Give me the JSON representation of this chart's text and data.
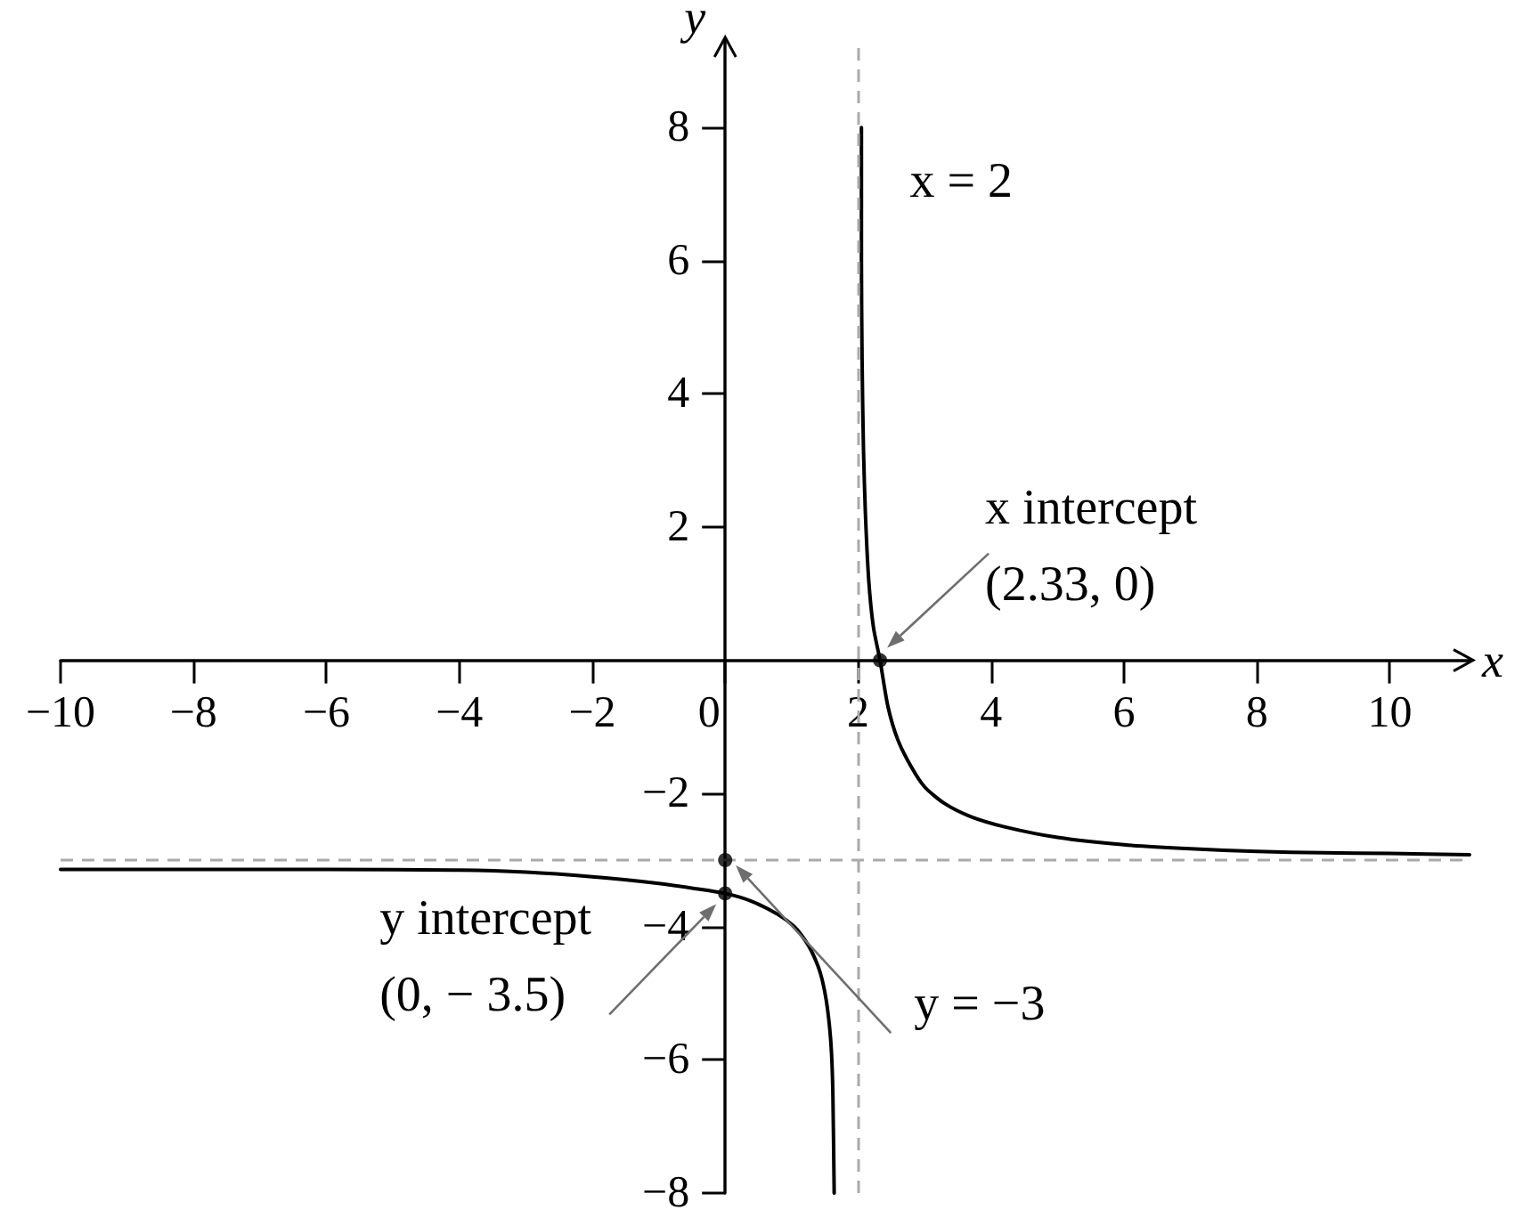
{
  "chart_data": {
    "type": "line",
    "xlabel": "x",
    "ylabel": "y",
    "xlim": [
      -10,
      11.2
    ],
    "ylim": [
      -8,
      9.3
    ],
    "xticks": [
      {
        "value": -10,
        "label": "−10"
      },
      {
        "value": -8,
        "label": "−8"
      },
      {
        "value": -6,
        "label": "−6"
      },
      {
        "value": -4,
        "label": "−4"
      },
      {
        "value": -2,
        "label": "−2"
      },
      0,
      2,
      4,
      6,
      8,
      10
    ],
    "yticks": [
      {
        "value": -8,
        "label": "−8"
      },
      {
        "value": -6,
        "label": "−6"
      },
      {
        "value": -4,
        "label": "−4"
      },
      {
        "value": -2,
        "label": "−2"
      },
      2,
      4,
      6,
      8
    ],
    "series": [
      {
        "color": "#000000",
        "marker": "none",
        "line_style": "solid",
        "x": [
          -10,
          -8,
          -6,
          -4,
          -3,
          -2,
          -1,
          -0.5,
          0,
          0.4,
          0.8,
          1.04,
          1.2,
          1.3,
          1.4,
          1.46,
          1.52,
          1.57,
          1.6,
          1.62,
          1.64
        ],
        "values": [
          -3.14,
          -3.14,
          -3.14,
          -3.15,
          -3.18,
          -3.25,
          -3.35,
          -3.42,
          -3.5,
          -3.62,
          -3.82,
          -4.0,
          -4.2,
          -4.37,
          -4.6,
          -4.8,
          -5.1,
          -5.5,
          -5.9,
          -6.5,
          -8
        ]
      },
      {
        "color": "#000000",
        "marker": "none",
        "line_style": "solid",
        "x": [
          2.05,
          2.05,
          2.06,
          2.08,
          2.11,
          2.16,
          2.23,
          2.33,
          2.45,
          2.6,
          2.8,
          3.0,
          3.3,
          3.7,
          4.2,
          5,
          6,
          7,
          8,
          9,
          10,
          11.2
        ],
        "values": [
          8,
          6,
          4.5,
          3.2,
          2.2,
          1.2,
          0.5,
          0,
          -0.7,
          -1.2,
          -1.6,
          -1.9,
          -2.15,
          -2.35,
          -2.5,
          -2.66,
          -2.77,
          -2.83,
          -2.87,
          -2.89,
          -2.9,
          -2.92
        ]
      },
      {
        "type": "scatter",
        "color": "#000000",
        "marker": "circle",
        "x": [
          2.33,
          0,
          0
        ],
        "values": [
          0,
          -3.5,
          -3
        ]
      }
    ],
    "ref_lines": [
      {
        "axis": "x",
        "value": 2,
        "label": "x = 2",
        "color": "#aaaaaa",
        "line_style": "dashed"
      },
      {
        "axis": "y",
        "value": -3,
        "label": "y = −3",
        "color": "#aaaaaa",
        "line_style": "dashed"
      }
    ],
    "annotations": [
      {
        "text": "x intercept\n(2.33, 0)",
        "x": 2.33,
        "y": 0
      },
      {
        "text": "y intercept\n(0, − 3.5)",
        "x": 0,
        "y": -3.5
      }
    ]
  }
}
